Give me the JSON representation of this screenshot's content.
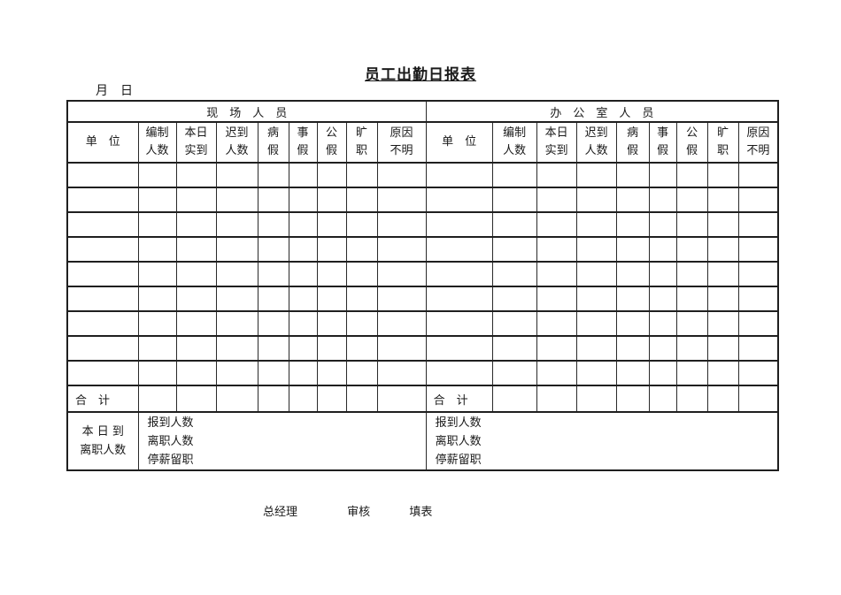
{
  "page": {
    "title": "员工出勤日报表",
    "date_label": "月　日",
    "background_color": "#ffffff",
    "text_color": "#1a1a1a",
    "border_color": "#1f1f1f"
  },
  "table": {
    "group_headers": {
      "field": "现　场　人　员",
      "office": "办　公　室　人　员"
    },
    "columns": [
      [
        "单　位"
      ],
      [
        "编制",
        "人数"
      ],
      [
        "本日",
        "实到"
      ],
      [
        "迟到",
        "人数"
      ],
      [
        "病",
        "假"
      ],
      [
        "事",
        "假"
      ],
      [
        "公",
        "假"
      ],
      [
        "旷",
        "职"
      ],
      [
        "原因",
        "不明"
      ]
    ],
    "empty_row_count": 9,
    "columns_per_side": 9,
    "total_label": "合　计",
    "bottom": {
      "label_line1": "本 日 到",
      "label_line2": "离职人数",
      "items": [
        "报到人数",
        "离职人数",
        "停薪留职"
      ]
    }
  },
  "footer": {
    "signatures": [
      "总经理",
      "审核",
      "填表"
    ]
  }
}
